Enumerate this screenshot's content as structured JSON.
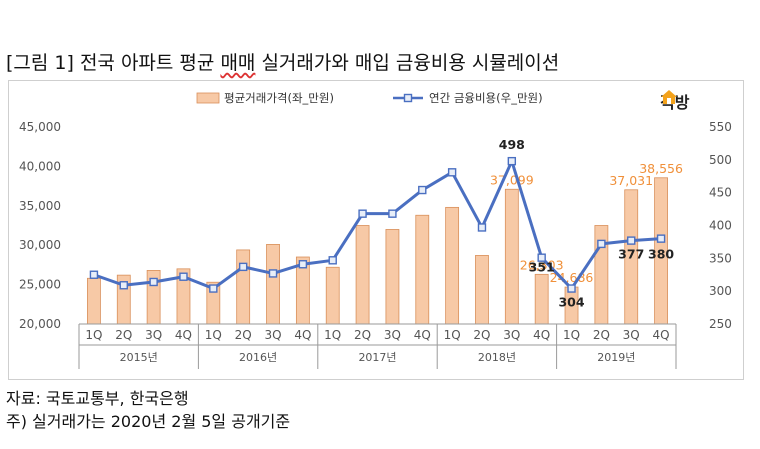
{
  "title_prefix": "[그림 1] 전국 아파트 평균 ",
  "title_underlined": "매매",
  "title_suffix": " 실거래가와 매입 금융비용 시뮬레이션",
  "brand": "직방",
  "source_note": "자료: 국토교통부, 한국은행",
  "footnote": "주) 실거래가는 2020년 2월 5일 공개기준",
  "colors": {
    "bar_fill": "#f7c9a6",
    "bar_stroke": "#d9905b",
    "line": "#4a6fc1",
    "marker_fill": "#e8eef8",
    "price_label": "#f0903a",
    "cost_label": "#222222",
    "axis_text": "#555555",
    "logo_accent": "#f3a21b"
  },
  "chart_data": {
    "type": "bar+line",
    "categories": [
      "1Q",
      "2Q",
      "3Q",
      "4Q",
      "1Q",
      "2Q",
      "3Q",
      "4Q",
      "1Q",
      "2Q",
      "3Q",
      "4Q",
      "1Q",
      "2Q",
      "3Q",
      "4Q",
      "1Q",
      "2Q",
      "3Q",
      "4Q"
    ],
    "years": [
      "2015년",
      "2016년",
      "2017년",
      "2018년",
      "2019년"
    ],
    "legend_position": "top-center",
    "series": [
      {
        "name": "평균거래가격(좌_만원)",
        "type": "bar",
        "axis": "left",
        "values": [
          25800,
          26200,
          26800,
          27000,
          25300,
          29400,
          30100,
          28500,
          27200,
          32500,
          32000,
          33800,
          34800,
          28700,
          37099,
          26303,
          24686,
          32500,
          37031,
          38556
        ]
      },
      {
        "name": "연간 금융비용(우_만원)",
        "type": "line",
        "axis": "right",
        "values": [
          325,
          309,
          314,
          322,
          304,
          337,
          327,
          341,
          347,
          418,
          418,
          454,
          481,
          397,
          498,
          351,
          304,
          372,
          377,
          380
        ]
      }
    ],
    "price_labels": [
      {
        "index": 14,
        "text": "37,099"
      },
      {
        "index": 15,
        "text": "26,303"
      },
      {
        "index": 16,
        "text": "24,686"
      },
      {
        "index": 18,
        "text": "37,031"
      },
      {
        "index": 19,
        "text": "38,556"
      }
    ],
    "cost_labels": [
      {
        "index": 14,
        "text": "498"
      },
      {
        "index": 15,
        "text": "351"
      },
      {
        "index": 16,
        "text": "304"
      },
      {
        "index": 18,
        "text": "377"
      },
      {
        "index": 19,
        "text": "380"
      }
    ],
    "y_left": {
      "min": 20000,
      "max": 45000,
      "ticks": [
        "20,000",
        "25,000",
        "30,000",
        "35,000",
        "40,000",
        "45,000"
      ]
    },
    "y_right": {
      "min": 250,
      "max": 550,
      "ticks": [
        "250",
        "300",
        "350",
        "400",
        "450",
        "500",
        "550"
      ]
    },
    "grid": false
  }
}
